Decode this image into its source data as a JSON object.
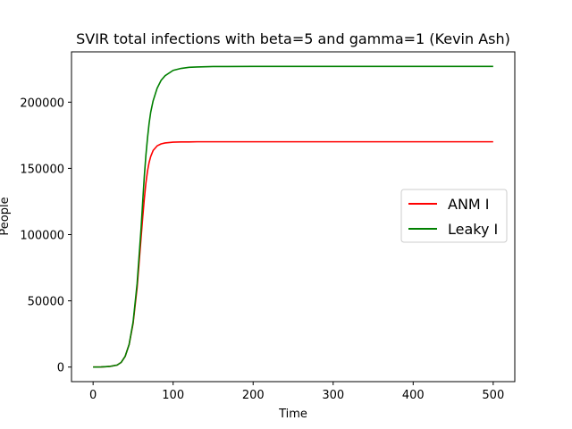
{
  "chart_data": {
    "type": "line",
    "title": "SVIR total infections with beta=5 and gamma=1 (Kevin Ash)",
    "xlabel": "Time",
    "ylabel": "People",
    "xlim": [
      -27,
      527
    ],
    "ylim": [
      -11000,
      238000
    ],
    "xticks": [
      0,
      100,
      200,
      300,
      400,
      500
    ],
    "yticks": [
      0,
      50000,
      100000,
      150000,
      200000
    ],
    "grid": false,
    "legend_position": "center-right",
    "series": [
      {
        "name": "ANM I",
        "color": "#ff0000",
        "x": [
          0,
          10,
          20,
          30,
          35,
          40,
          45,
          50,
          55,
          60,
          62,
          64,
          66,
          68,
          70,
          72,
          75,
          80,
          85,
          90,
          100,
          110,
          120,
          130,
          150,
          200,
          300,
          400,
          500
        ],
        "y": [
          0,
          100,
          400,
          1500,
          3500,
          8000,
          17000,
          33000,
          60000,
          98000,
          113000,
          127000,
          139000,
          148000,
          154500,
          159000,
          163500,
          167000,
          168500,
          169200,
          169800,
          170000,
          170000,
          170100,
          170100,
          170100,
          170100,
          170100,
          170100
        ]
      },
      {
        "name": "Leaky I",
        "color": "#008000",
        "x": [
          0,
          10,
          20,
          30,
          35,
          40,
          45,
          50,
          55,
          60,
          62,
          64,
          66,
          68,
          70,
          72,
          75,
          80,
          85,
          90,
          100,
          110,
          120,
          130,
          150,
          200,
          300,
          400,
          500
        ],
        "y": [
          0,
          100,
          400,
          1500,
          3500,
          8000,
          17000,
          34000,
          63000,
          105000,
          125000,
          144000,
          160000,
          173000,
          184000,
          192500,
          201000,
          210500,
          216500,
          220000,
          224000,
          225500,
          226300,
          226600,
          226900,
          227000,
          227000,
          227000,
          227000
        ]
      }
    ]
  }
}
